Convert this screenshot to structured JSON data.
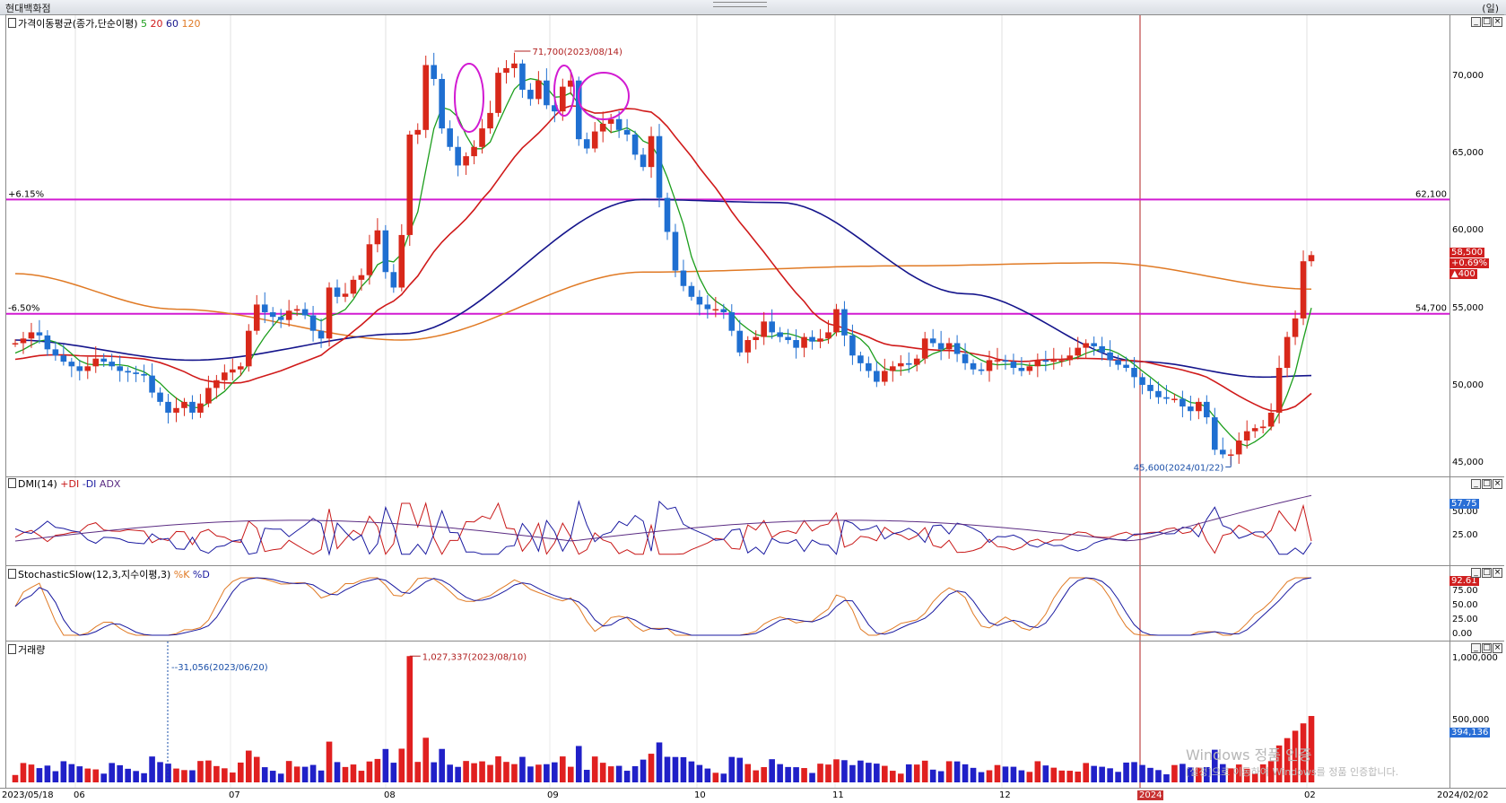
{
  "window": {
    "title": "현대백화점",
    "unit_label": "(일)"
  },
  "price_panel": {
    "label": "가격이동평균(종가,단순이평)",
    "ma_periods": [
      "5",
      "20",
      "60",
      "120"
    ],
    "ma_colors": [
      "#1c9e1c",
      "#d01a1a",
      "#15158c",
      "#e07a25"
    ],
    "y_ticks": [
      "70,000",
      "65,000",
      "60,000",
      "55,000",
      "50,000",
      "45,000"
    ],
    "hline_upper": {
      "pct": "+6.15%",
      "value": "62,100"
    },
    "hline_lower": {
      "pct": "-6.50%",
      "value": "54,700"
    },
    "current": {
      "price": "58,500",
      "change_pct": "+0.69%",
      "change": "▲400"
    },
    "high_note": "71,700(2023/08/14)",
    "low_note": "45,600(2024/01/22)"
  },
  "dmi_panel": {
    "label": "DMI(14)",
    "legend": [
      "+DI",
      "-DI",
      "ADX"
    ],
    "y_ticks": [
      "50.00",
      "25.00"
    ],
    "current": "57.75"
  },
  "stoch_panel": {
    "label": "StochasticSlow(12,3,지수이평,3)",
    "legend": [
      "%K",
      "%D"
    ],
    "y_ticks": [
      "75.00",
      "50.00",
      "25.00",
      "0.00"
    ],
    "current": "92.61"
  },
  "volume_panel": {
    "label": "거래량",
    "y_ticks": [
      "1,000,000",
      "500,000"
    ],
    "current": "394,136",
    "peak_note": "1,027,337(2023/08/10)",
    "low_note": "31,056(2023/06/20)"
  },
  "date_axis": [
    "2023/05/18",
    "06",
    "07",
    "08",
    "09",
    "10",
    "11",
    "12",
    "2024",
    "02",
    "2024/02/02"
  ],
  "watermark": {
    "line1": "Windows 정품 인증",
    "line2": "[설정]으로 이동하여 Windows를 정품 인증합니다."
  },
  "chart_data": {
    "type": "candlestick",
    "price_range": [
      44000,
      73500
    ],
    "price_closes": [
      52800,
      53100,
      53500,
      53300,
      52400,
      52000,
      51600,
      51300,
      51000,
      51300,
      51800,
      51600,
      51300,
      51000,
      50900,
      50800,
      50700,
      49600,
      49000,
      48300,
      48600,
      49000,
      48300,
      48900,
      49900,
      50400,
      50900,
      51100,
      51300,
      53600,
      55300,
      54800,
      54500,
      54300,
      54900,
      55000,
      54600,
      53600,
      53100,
      56400,
      55800,
      56000,
      56900,
      57200,
      59200,
      60100,
      57400,
      56400,
      59800,
      66300,
      66600,
      70800,
      69900,
      66700,
      65500,
      64300,
      64900,
      65500,
      66700,
      67700,
      70300,
      70600,
      70900,
      69200,
      68600,
      69800,
      68200,
      67800,
      69400,
      69800,
      66000,
      65400,
      66500,
      67000,
      67300,
      66600,
      66300,
      65000,
      64200,
      66200,
      62200,
      60000,
      57500,
      56500,
      55800,
      55300,
      55000,
      55000,
      54800,
      53600,
      52200,
      53000,
      53200,
      54200,
      53500,
      53200,
      53000,
      52500,
      53200,
      52900,
      53100,
      53500,
      55000,
      53300,
      52000,
      51500,
      51000,
      50300,
      51000,
      51300,
      51500,
      51400,
      51800,
      53100,
      52800,
      52400,
      52800,
      52100,
      51500,
      51100,
      51000,
      51700,
      51700,
      51600,
      51200,
      51000,
      51300,
      51700,
      51600,
      51700,
      51700,
      52000,
      52500,
      52800,
      52600,
      52200,
      51700,
      51400,
      51200,
      50600,
      50100,
      49700,
      49300,
      49200,
      49200,
      48700,
      48400,
      49000,
      48000,
      45900,
      45600,
      45600,
      46500,
      47100,
      47300,
      47400,
      48300,
      51200,
      53200,
      54400,
      58100,
      58500
    ],
    "high": {
      "value": 71700,
      "date": "2023/08/14"
    },
    "low": {
      "value": 45600,
      "date": "2024/01/22"
    },
    "hlines": [
      62100,
      54700
    ],
    "volume_peak": {
      "value": 1027337,
      "date": "2023/08/10"
    }
  }
}
